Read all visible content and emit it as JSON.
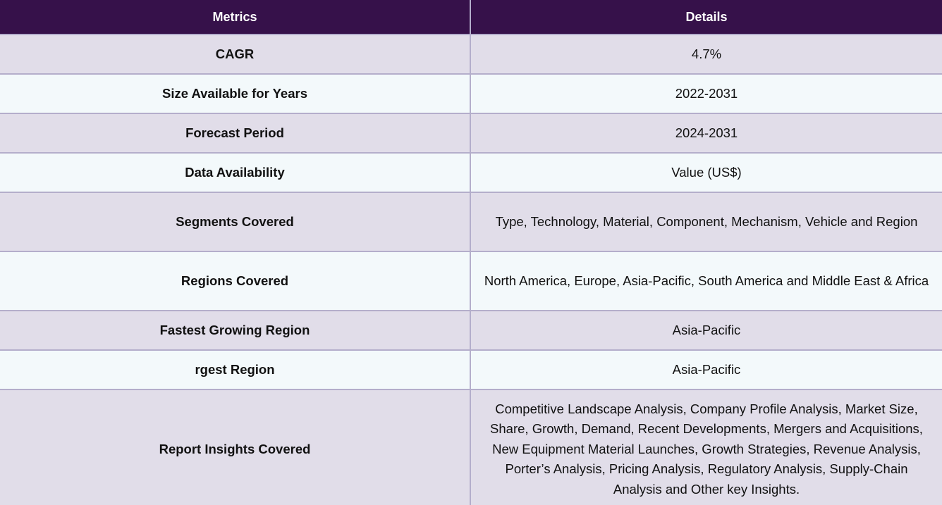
{
  "table": {
    "headers": {
      "metrics": "Metrics",
      "details": "Details"
    },
    "rows": [
      {
        "metric": "CAGR",
        "detail": "4.7%"
      },
      {
        "metric": "Size Available for Years",
        "detail": "2022-2031"
      },
      {
        "metric": "Forecast Period",
        "detail": "2024-2031"
      },
      {
        "metric": "Data Availability",
        "detail": "Value (US$)"
      },
      {
        "metric": "Segments Covered",
        "detail": "Type, Technology, Material, Component, Mechanism, Vehicle and Region"
      },
      {
        "metric": "Regions Covered",
        "detail": "North America, Europe, Asia-Pacific, South America and Middle East & Africa"
      },
      {
        "metric": "Fastest Growing Region",
        "detail": "Asia-Pacific"
      },
      {
        "metric": "rgest Region",
        "detail": "Asia-Pacific"
      },
      {
        "metric": "Report Insights Covered",
        "detail": "Competitive Landscape Analysis, Company Profile Analysis, Market Size, Share, Growth, Demand, Recent Developments, Mergers and Acquisitions, New Equipment Material Launches, Growth Strategies, Revenue Analysis, Porter’s Analysis, Pricing Analysis, Regulatory Analysis, Supply-Chain Analysis and Other key Insights."
      }
    ]
  }
}
